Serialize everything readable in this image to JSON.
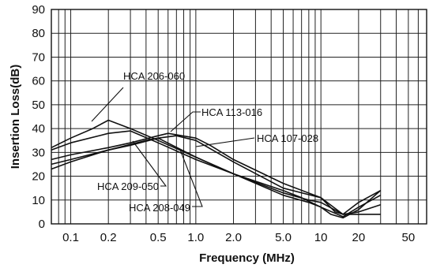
{
  "chart_data": {
    "type": "line",
    "title": "",
    "xlabel": "Frequency (MHz)",
    "ylabel": "Insertion Loss(dB)",
    "xscale": "log",
    "xlim": [
      0.07,
      70
    ],
    "ylim": [
      0,
      90
    ],
    "x_ticks": [
      0.1,
      0.2,
      0.5,
      1.0,
      2.0,
      5.0,
      10,
      20,
      50
    ],
    "x_tick_labels": [
      "0.1",
      "0.2",
      "0.5",
      "1.0",
      "2.0",
      "5.0",
      "10",
      "20",
      "50"
    ],
    "y_ticks": [
      0,
      10,
      20,
      30,
      40,
      50,
      60,
      70,
      80,
      90
    ],
    "y_tick_labels": [
      "0",
      "10",
      "20",
      "30",
      "40",
      "50",
      "60",
      "70",
      "80",
      "90"
    ],
    "grid": true,
    "series": [
      {
        "name": "HCA 206-060",
        "x": [
          0.07,
          0.1,
          0.15,
          0.2,
          0.3,
          0.5,
          1.0,
          2.0,
          5.0,
          8.0,
          10,
          12,
          15,
          20,
          30
        ],
        "y": [
          32,
          36,
          40,
          43.5,
          40,
          35,
          28,
          21,
          12,
          9,
          7,
          4,
          2.5,
          6,
          14
        ]
      },
      {
        "name": "HCA 113-016",
        "x": [
          0.07,
          0.1,
          0.2,
          0.3,
          0.5,
          0.7,
          1.0,
          2.0,
          5.0,
          10,
          13,
          15,
          20,
          30
        ],
        "y": [
          25,
          27,
          31,
          33,
          36,
          37,
          35,
          26,
          15,
          11,
          5,
          4,
          4,
          4
        ]
      },
      {
        "name": "HCA 107-028",
        "x": [
          0.07,
          0.1,
          0.2,
          0.3,
          0.5,
          0.6,
          1.0,
          1.3,
          2.0,
          5.0,
          10,
          15,
          20,
          30
        ],
        "y": [
          27,
          29,
          32,
          34,
          37,
          38,
          36,
          33,
          27,
          17,
          11,
          4,
          9,
          14
        ]
      },
      {
        "name": "HCA 209-050",
        "x": [
          0.07,
          0.1,
          0.2,
          0.3,
          0.5,
          1.0,
          2.0,
          5.0,
          8.0,
          10,
          15,
          20,
          30
        ],
        "y": [
          31,
          34,
          38,
          39,
          34,
          27,
          21,
          13,
          10,
          9,
          4,
          5,
          8
        ]
      },
      {
        "name": "HCA 208-049",
        "x": [
          0.07,
          0.1,
          0.2,
          0.4,
          0.5,
          1.0,
          2.0,
          5.0,
          7.0,
          10,
          15,
          20,
          30
        ],
        "y": [
          23,
          26,
          31,
          35,
          36,
          28,
          21,
          14,
          11,
          7,
          3,
          7,
          12
        ]
      }
    ],
    "annotations": [
      {
        "label": "HCA 206-060",
        "series": "HCA 206-060"
      },
      {
        "label": "HCA 113-016",
        "series": "HCA 113-016"
      },
      {
        "label": "HCA 107-028",
        "series": "HCA 107-028"
      },
      {
        "label": "HCA 209-050",
        "series": "HCA 209-050"
      },
      {
        "label": "HCA 208-049",
        "series": "HCA 208-049"
      }
    ]
  }
}
